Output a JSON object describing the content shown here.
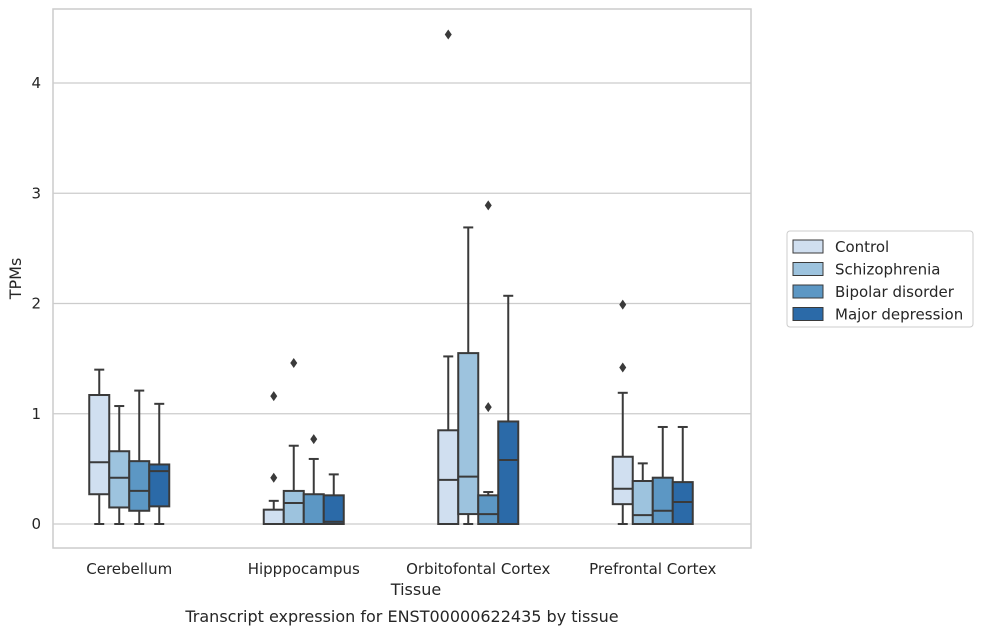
{
  "chart_data": {
    "type": "box",
    "caption": "Transcript expression for ENST00000622435 by tissue",
    "xlabel": "Tissue",
    "ylabel": "TPMs",
    "ylim": [
      -0.22,
      4.65
    ],
    "yticks": [
      0,
      1,
      2,
      3,
      4
    ],
    "grid": "y",
    "legend_position": "right-center",
    "categories": [
      "Cerebellum",
      "Hipppocampus",
      "Orbitofontal Cortex",
      "Prefrontal Cortex"
    ],
    "series": [
      {
        "name": "Control",
        "color": "#d0dff0",
        "boxes": [
          {
            "min": 0.0,
            "q1": 0.27,
            "median": 0.56,
            "q3": 1.17,
            "max": 1.4,
            "outliers": []
          },
          {
            "min": 0.0,
            "q1": 0.0,
            "median": 0.0,
            "q3": 0.13,
            "max": 0.21,
            "outliers": [
              0.42,
              1.16
            ]
          },
          {
            "min": 0.0,
            "q1": 0.0,
            "median": 0.4,
            "q3": 0.85,
            "max": 1.52,
            "outliers": [
              4.44
            ]
          },
          {
            "min": 0.0,
            "q1": 0.18,
            "median": 0.32,
            "q3": 0.61,
            "max": 1.19,
            "outliers": [
              1.42,
              1.99
            ]
          }
        ]
      },
      {
        "name": "Schizophrenia",
        "color": "#9dc3de",
        "boxes": [
          {
            "min": 0.0,
            "q1": 0.15,
            "median": 0.42,
            "q3": 0.66,
            "max": 1.07,
            "outliers": []
          },
          {
            "min": 0.0,
            "q1": 0.0,
            "median": 0.19,
            "q3": 0.3,
            "max": 0.71,
            "outliers": [
              1.46
            ]
          },
          {
            "min": 0.0,
            "q1": 0.09,
            "median": 0.43,
            "q3": 1.55,
            "max": 2.69,
            "outliers": []
          },
          {
            "min": 0.0,
            "q1": 0.0,
            "median": 0.08,
            "q3": 0.39,
            "max": 0.55,
            "outliers": []
          }
        ]
      },
      {
        "name": "Bipolar disorder",
        "color": "#5c97c4",
        "boxes": [
          {
            "min": 0.0,
            "q1": 0.12,
            "median": 0.3,
            "q3": 0.57,
            "max": 1.21,
            "outliers": []
          },
          {
            "min": 0.0,
            "q1": 0.0,
            "median": 0.0,
            "q3": 0.27,
            "max": 0.59,
            "outliers": [
              0.77
            ]
          },
          {
            "min": 0.0,
            "q1": 0.0,
            "median": 0.09,
            "q3": 0.26,
            "max": 0.29,
            "outliers": [
              1.06,
              2.89
            ]
          },
          {
            "min": 0.0,
            "q1": 0.0,
            "median": 0.12,
            "q3": 0.42,
            "max": 0.88,
            "outliers": []
          }
        ]
      },
      {
        "name": "Major depression",
        "color": "#2b6aa8",
        "boxes": [
          {
            "min": 0.0,
            "q1": 0.16,
            "median": 0.48,
            "q3": 0.54,
            "max": 1.09,
            "outliers": []
          },
          {
            "min": 0.0,
            "q1": 0.0,
            "median": 0.02,
            "q3": 0.26,
            "max": 0.45,
            "outliers": []
          },
          {
            "min": 0.0,
            "q1": 0.0,
            "median": 0.58,
            "q3": 0.93,
            "max": 2.07,
            "outliers": []
          },
          {
            "min": 0.0,
            "q1": 0.0,
            "median": 0.2,
            "q3": 0.38,
            "max": 0.88,
            "outliers": []
          }
        ]
      }
    ]
  }
}
